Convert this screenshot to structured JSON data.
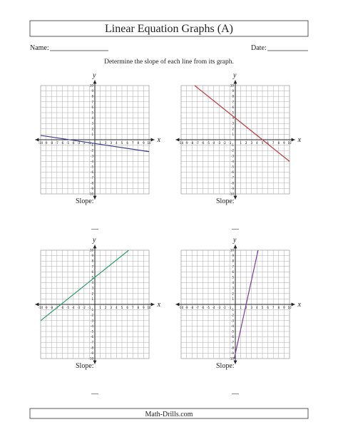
{
  "header": {
    "title": "Linear Equation Graphs (A)",
    "name_label": "Name:",
    "date_label": "Date:"
  },
  "instructions": "Determine the slope of each line from its graph.",
  "axis_ticks": [
    -10,
    -9,
    -8,
    -7,
    -6,
    -5,
    -4,
    -3,
    -2,
    -1,
    1,
    2,
    3,
    4,
    5,
    6,
    7,
    8,
    9,
    10
  ],
  "graphs": [
    {
      "x_label": "x",
      "y_label": "y",
      "slope_label": "Slope:",
      "answer_blank": "—",
      "color": "#3b3b8f",
      "line": {
        "x": [
          -10,
          10
        ],
        "y": [
          0.8,
          -2.2
        ]
      }
    },
    {
      "x_label": "x",
      "y_label": "y",
      "slope_label": "Slope:",
      "answer_blank": "—",
      "color": "#c0393b",
      "line": {
        "x": [
          -7.5,
          10
        ],
        "y": [
          10,
          -4
        ]
      }
    },
    {
      "x_label": "x",
      "y_label": "y",
      "slope_label": "Slope:",
      "answer_blank": "—",
      "color": "#2a9d6a",
      "line": {
        "x": [
          -10,
          6.25
        ],
        "y": [
          -3,
          10
        ]
      }
    },
    {
      "x_label": "x",
      "y_label": "y",
      "slope_label": "Slope:",
      "answer_blank": "—",
      "color": "#7b3b9b",
      "line": {
        "x": [
          -0.2,
          4.2
        ],
        "y": [
          -10,
          10
        ]
      }
    }
  ],
  "footer": "Math-Drills.com"
}
